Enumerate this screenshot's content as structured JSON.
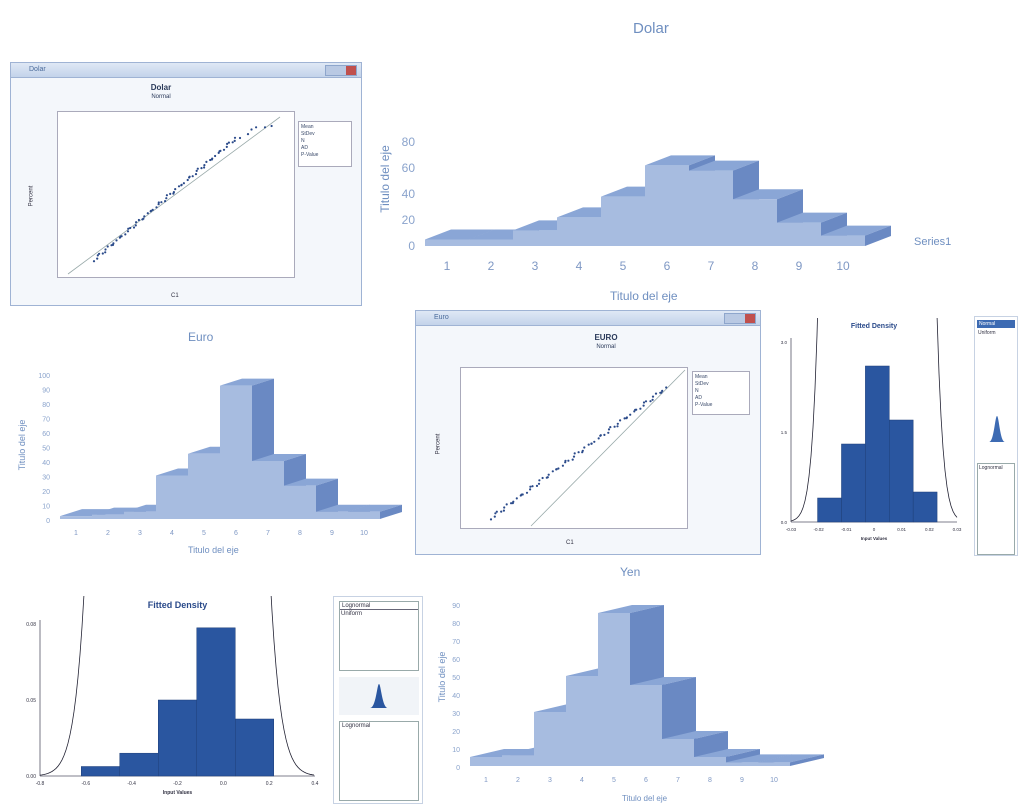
{
  "chart_data": [
    {
      "type": "bar",
      "id": "dolar-3d",
      "title": "Dolar",
      "xlabel": "Titulo del eje",
      "ylabel": "Titulo del eje",
      "categories": [
        "1",
        "2",
        "3",
        "4",
        "5",
        "6",
        "7",
        "8",
        "9",
        "10"
      ],
      "series": [
        {
          "name": "Series1",
          "values": [
            5,
            5,
            12,
            22,
            38,
            62,
            58,
            36,
            18,
            8
          ]
        }
      ],
      "ylim": [
        0,
        80
      ],
      "yticks": [
        0,
        20,
        40,
        60,
        80
      ],
      "legend": "right"
    },
    {
      "type": "bar",
      "id": "euro-3d",
      "title": "Euro",
      "xlabel": "Titulo del eje",
      "ylabel": "Titulo del eje",
      "categories": [
        "1",
        "2",
        "3",
        "4",
        "5",
        "6",
        "7",
        "8",
        "9",
        "10"
      ],
      "values": [
        2,
        3,
        5,
        30,
        45,
        92,
        40,
        23,
        5,
        5
      ],
      "ylim": [
        0,
        100
      ],
      "yticks": [
        0,
        10,
        20,
        30,
        40,
        50,
        60,
        70,
        80,
        90,
        100
      ]
    },
    {
      "type": "bar",
      "id": "yen-3d",
      "title": "Yen",
      "xlabel": "Titulo del eje",
      "ylabel": "Titulo del eje",
      "categories": [
        "1",
        "2",
        "3",
        "4",
        "5",
        "6",
        "7",
        "8",
        "9",
        "10"
      ],
      "values": [
        5,
        6,
        30,
        50,
        85,
        45,
        15,
        5,
        2,
        2
      ],
      "ylim": [
        0,
        90
      ],
      "yticks": [
        0,
        10,
        20,
        30,
        40,
        50,
        60,
        70,
        80,
        90
      ]
    },
    {
      "type": "bar",
      "id": "fitted-density-top",
      "title": "Fitted Density",
      "xlabel": "Input Values",
      "categories": [
        "-0.02",
        "-0.01",
        "0",
        "0.01",
        "0.02"
      ],
      "values": [
        0.4,
        1.3,
        2.6,
        1.7,
        0.5
      ],
      "ylim": [
        0,
        3.0
      ],
      "xticks": [
        "-0.03",
        "-0.02",
        "-0.01",
        "0",
        "0.01",
        "0.02",
        "0.03"
      ],
      "yticks": [
        "0.0",
        "1.5",
        "3.0"
      ]
    },
    {
      "type": "bar",
      "id": "fitted-density-bottom",
      "title": "Fitted Density",
      "xlabel": "Input Values",
      "categories": [
        "-0.5",
        "-0.3",
        "-0.1",
        "0.1",
        "0.3"
      ],
      "values": [
        0.005,
        0.012,
        0.04,
        0.078,
        0.03
      ],
      "ylim": [
        0,
        0.08
      ],
      "xticks": [
        "-0.8",
        "-0.6",
        "-0.4",
        "-0.2",
        "0.0",
        "0.2",
        "0.4"
      ],
      "yticks": [
        "0.00",
        "0.05",
        "0.08"
      ]
    }
  ],
  "dolar_window": {
    "title_bar": "Dolar",
    "plot_title": "Dolar",
    "plot_subtitle": "Normal",
    "ylabel": "Percent",
    "xlabel": "C1",
    "stats": [
      "Mean",
      "StDev",
      "N",
      "AD",
      "P-Value"
    ]
  },
  "euro_window": {
    "title_bar": "Euro",
    "plot_title": "EURO",
    "plot_subtitle": "Normal",
    "ylabel": "Percent",
    "xlabel": "C1",
    "stats": [
      "Mean",
      "StDev",
      "N",
      "AD",
      "P-Value"
    ]
  },
  "right_side_panel": {
    "header": "Normal",
    "sub": "Uniform",
    "bottom_label": "Lognormal"
  },
  "bottom_side_panel": {
    "selected": "Lognormal",
    "second": "Uniform",
    "bottom_label": "Lognormal"
  },
  "colors": {
    "bar_face": "#a7bce0",
    "bar_side": "#6a89c3",
    "bar_top": "#8aa6d6",
    "density_bar": "#2a56a0",
    "text": "#6f8fc0"
  }
}
